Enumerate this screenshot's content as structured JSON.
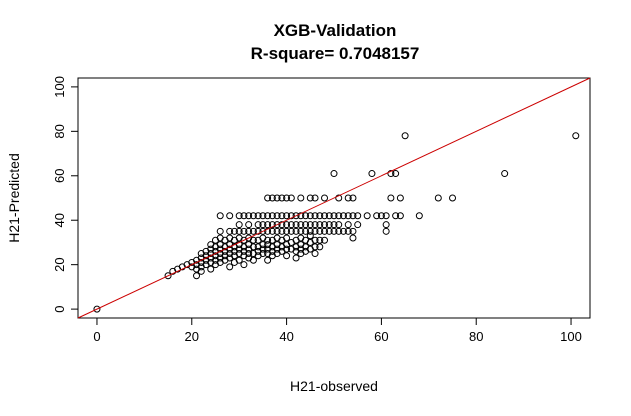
{
  "chart_data": {
    "type": "scatter",
    "title": "XGB-Validation",
    "subtitle": "R-square= 0.7048157",
    "xlabel": "H21-observed",
    "ylabel": "H21-Predicted",
    "xlim": [
      -4,
      104
    ],
    "ylim": [
      -4,
      104
    ],
    "xticks": [
      0,
      20,
      40,
      60,
      80,
      100
    ],
    "yticks": [
      0,
      20,
      40,
      60,
      80,
      100
    ],
    "xtick_labels": [
      "0",
      "20",
      "40",
      "60",
      "80",
      "100"
    ],
    "ytick_labels": [
      "0",
      "20",
      "40",
      "60",
      "80",
      "100"
    ],
    "grid": false,
    "reference_line": {
      "slope": 1,
      "intercept": 0,
      "color": "#cc0000"
    },
    "colors": {
      "points": "#000000",
      "line": "#cc0000",
      "axes": "#000000"
    },
    "series": [
      {
        "values": [
          [
            0,
            0
          ],
          [
            15,
            15
          ],
          [
            16,
            17
          ],
          [
            17,
            18
          ],
          [
            18,
            19
          ],
          [
            19,
            20
          ],
          [
            20,
            21
          ],
          [
            20,
            19
          ],
          [
            21,
            15
          ],
          [
            21,
            18
          ],
          [
            21,
            20
          ],
          [
            21,
            22
          ],
          [
            22,
            17
          ],
          [
            22,
            19
          ],
          [
            22,
            21
          ],
          [
            22,
            23
          ],
          [
            22,
            25
          ],
          [
            23,
            20
          ],
          [
            23,
            22
          ],
          [
            23,
            24
          ],
          [
            23,
            26
          ],
          [
            24,
            18
          ],
          [
            24,
            21
          ],
          [
            24,
            23
          ],
          [
            24,
            25
          ],
          [
            24,
            27
          ],
          [
            24,
            29
          ],
          [
            25,
            20
          ],
          [
            25,
            22
          ],
          [
            25,
            24
          ],
          [
            25,
            26
          ],
          [
            25,
            28
          ],
          [
            25,
            31
          ],
          [
            26,
            21
          ],
          [
            26,
            23
          ],
          [
            26,
            25
          ],
          [
            26,
            27
          ],
          [
            26,
            29
          ],
          [
            26,
            32
          ],
          [
            26,
            35
          ],
          [
            26,
            42
          ],
          [
            27,
            22
          ],
          [
            27,
            24
          ],
          [
            27,
            26
          ],
          [
            27,
            28
          ],
          [
            27,
            31
          ],
          [
            28,
            19
          ],
          [
            28,
            23
          ],
          [
            28,
            25
          ],
          [
            28,
            27
          ],
          [
            28,
            29
          ],
          [
            28,
            32
          ],
          [
            28,
            35
          ],
          [
            28,
            42
          ],
          [
            29,
            21
          ],
          [
            29,
            24
          ],
          [
            29,
            26
          ],
          [
            29,
            28
          ],
          [
            29,
            31
          ],
          [
            29,
            35
          ],
          [
            30,
            22
          ],
          [
            30,
            25
          ],
          [
            30,
            27
          ],
          [
            30,
            29
          ],
          [
            30,
            32
          ],
          [
            30,
            35
          ],
          [
            30,
            38
          ],
          [
            30,
            42
          ],
          [
            31,
            20
          ],
          [
            31,
            24
          ],
          [
            31,
            26
          ],
          [
            31,
            28
          ],
          [
            31,
            31
          ],
          [
            31,
            35
          ],
          [
            31,
            42
          ],
          [
            32,
            23
          ],
          [
            32,
            25
          ],
          [
            32,
            27
          ],
          [
            32,
            29
          ],
          [
            32,
            32
          ],
          [
            32,
            35
          ],
          [
            32,
            38
          ],
          [
            32,
            42
          ],
          [
            33,
            22
          ],
          [
            33,
            25
          ],
          [
            33,
            28
          ],
          [
            33,
            31
          ],
          [
            33,
            35
          ],
          [
            33,
            42
          ],
          [
            34,
            24
          ],
          [
            34,
            26
          ],
          [
            34,
            28
          ],
          [
            34,
            31
          ],
          [
            34,
            35
          ],
          [
            34,
            38
          ],
          [
            34,
            42
          ],
          [
            35,
            25
          ],
          [
            35,
            27
          ],
          [
            35,
            29
          ],
          [
            35,
            32
          ],
          [
            35,
            35
          ],
          [
            35,
            38
          ],
          [
            35,
            42
          ],
          [
            36,
            22
          ],
          [
            36,
            25
          ],
          [
            36,
            27
          ],
          [
            36,
            29
          ],
          [
            36,
            31
          ],
          [
            36,
            35
          ],
          [
            36,
            38
          ],
          [
            36,
            42
          ],
          [
            36,
            50
          ],
          [
            37,
            24
          ],
          [
            37,
            26
          ],
          [
            37,
            28
          ],
          [
            37,
            31
          ],
          [
            37,
            35
          ],
          [
            37,
            38
          ],
          [
            37,
            42
          ],
          [
            37,
            50
          ],
          [
            38,
            25
          ],
          [
            38,
            27
          ],
          [
            38,
            29
          ],
          [
            38,
            32
          ],
          [
            38,
            35
          ],
          [
            38,
            38
          ],
          [
            38,
            42
          ],
          [
            38,
            50
          ],
          [
            39,
            26
          ],
          [
            39,
            28
          ],
          [
            39,
            31
          ],
          [
            39,
            35
          ],
          [
            39,
            38
          ],
          [
            39,
            42
          ],
          [
            39,
            50
          ],
          [
            40,
            24
          ],
          [
            40,
            27
          ],
          [
            40,
            29
          ],
          [
            40,
            32
          ],
          [
            40,
            35
          ],
          [
            40,
            38
          ],
          [
            40,
            42
          ],
          [
            40,
            50
          ],
          [
            41,
            27
          ],
          [
            41,
            30
          ],
          [
            41,
            35
          ],
          [
            41,
            38
          ],
          [
            41,
            42
          ],
          [
            41,
            50
          ],
          [
            42,
            23
          ],
          [
            42,
            26
          ],
          [
            42,
            28
          ],
          [
            42,
            31
          ],
          [
            42,
            35
          ],
          [
            42,
            38
          ],
          [
            42,
            42
          ],
          [
            43,
            25
          ],
          [
            43,
            27
          ],
          [
            43,
            29
          ],
          [
            43,
            32
          ],
          [
            43,
            35
          ],
          [
            43,
            38
          ],
          [
            43,
            42
          ],
          [
            43,
            50
          ],
          [
            44,
            26
          ],
          [
            44,
            28
          ],
          [
            44,
            31
          ],
          [
            44,
            35
          ],
          [
            44,
            38
          ],
          [
            44,
            42
          ],
          [
            45,
            27
          ],
          [
            45,
            30
          ],
          [
            45,
            33
          ],
          [
            45,
            35
          ],
          [
            45,
            38
          ],
          [
            45,
            42
          ],
          [
            45,
            50
          ],
          [
            46,
            25
          ],
          [
            46,
            28
          ],
          [
            46,
            31
          ],
          [
            46,
            35
          ],
          [
            46,
            38
          ],
          [
            46,
            42
          ],
          [
            46,
            50
          ],
          [
            47,
            28
          ],
          [
            47,
            31
          ],
          [
            47,
            35
          ],
          [
            47,
            38
          ],
          [
            47,
            42
          ],
          [
            48,
            31
          ],
          [
            48,
            35
          ],
          [
            48,
            38
          ],
          [
            48,
            42
          ],
          [
            48,
            50
          ],
          [
            49,
            35
          ],
          [
            49,
            38
          ],
          [
            49,
            42
          ],
          [
            50,
            35
          ],
          [
            50,
            38
          ],
          [
            50,
            42
          ],
          [
            50,
            61
          ],
          [
            51,
            35
          ],
          [
            51,
            38
          ],
          [
            51,
            42
          ],
          [
            51,
            50
          ],
          [
            52,
            35
          ],
          [
            52,
            42
          ],
          [
            53,
            35
          ],
          [
            53,
            38
          ],
          [
            53,
            42
          ],
          [
            53,
            50
          ],
          [
            54,
            32
          ],
          [
            54,
            35
          ],
          [
            54,
            42
          ],
          [
            54,
            50
          ],
          [
            55,
            38
          ],
          [
            55,
            42
          ],
          [
            57,
            42
          ],
          [
            58,
            61
          ],
          [
            59,
            42
          ],
          [
            60,
            42
          ],
          [
            61,
            35
          ],
          [
            61,
            38
          ],
          [
            61,
            42
          ],
          [
            62,
            50
          ],
          [
            62,
            61
          ],
          [
            63,
            42
          ],
          [
            63,
            61
          ],
          [
            64,
            42
          ],
          [
            64,
            50
          ],
          [
            65,
            78
          ],
          [
            68,
            42
          ],
          [
            72,
            50
          ],
          [
            75,
            50
          ],
          [
            86,
            61
          ],
          [
            101,
            78
          ]
        ]
      }
    ]
  }
}
